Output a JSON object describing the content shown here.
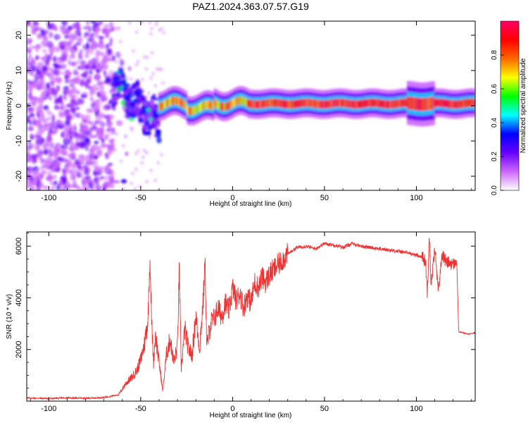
{
  "figure": {
    "title": "PAZ1.2024.363.07.57.G19"
  },
  "chart_data": [
    {
      "type": "heatmap",
      "xlabel": "Height of straight line (km)",
      "ylabel": "Frequency (Hz)",
      "xlim": [
        -112,
        132
      ],
      "ylim": [
        -24,
        24
      ],
      "xticks": [
        -100,
        -50,
        0,
        50,
        100
      ],
      "yticks": [
        -20,
        -10,
        0,
        10,
        20
      ],
      "colorbar": {
        "label": "Normalized spectral amplitude",
        "range": [
          0,
          1
        ],
        "ticks": [
          "0.0",
          "0.2",
          "0.4",
          "0.6",
          "0.8"
        ],
        "colormap": [
          "#ffffff",
          "#cc66ff",
          "#6600ff",
          "#0000ff",
          "#00ffff",
          "#00ff00",
          "#ffff00",
          "#ff6600",
          "#ff0000",
          "#ff0066"
        ]
      },
      "regions": [
        {
          "x_range": [
            -112,
            -65
          ],
          "freq_range": [
            -24,
            24
          ],
          "amplitude": "0.1–0.3",
          "note": "scattered noise"
        },
        {
          "x_range": [
            -65,
            -40
          ],
          "freq_center_start": 6,
          "freq_center_end": -5,
          "amplitude": "0.2–0.4"
        },
        {
          "x_range": [
            -40,
            132
          ],
          "freq_center": 0.5,
          "amplitude": "0.5–1.0"
        }
      ]
    },
    {
      "type": "line",
      "xlabel": "Height of straight line (km)",
      "ylabel": "SNR (10 * v/v)",
      "xlim": [
        -112,
        132
      ],
      "ylim": [
        0,
        6550
      ],
      "xticks": [
        -100,
        -50,
        0,
        50,
        100
      ],
      "yticks": [
        2000,
        4000,
        6000
      ],
      "grid": false,
      "color": "#ee3333",
      "series": [
        {
          "x": [
            -112,
            -100,
            -90,
            -80,
            -70,
            -62,
            -58,
            -55,
            -52,
            -50,
            -48,
            -46,
            -45,
            -44,
            -43,
            -42,
            -40,
            -38,
            -36,
            -34,
            -32,
            -30,
            -29,
            -28,
            -26,
            -24,
            -22,
            -20,
            -18,
            -16,
            -15,
            -14,
            -12,
            -10,
            -8,
            -6,
            -4,
            -2,
            0,
            2,
            4,
            6,
            8,
            10,
            12,
            14,
            16,
            18,
            20,
            25,
            30,
            35,
            40,
            45,
            50,
            55,
            60,
            65,
            70,
            75,
            80,
            85,
            90,
            95,
            100,
            103,
            105,
            106,
            107,
            108,
            110,
            112,
            114,
            116,
            118,
            120,
            121,
            122,
            123,
            125,
            128,
            132
          ],
          "y": [
            120,
            100,
            130,
            110,
            140,
            250,
            700,
            900,
            1200,
            1600,
            2200,
            3200,
            5600,
            3000,
            1500,
            2600,
            1500,
            400,
            1800,
            2400,
            1500,
            2100,
            5200,
            1200,
            2800,
            2000,
            1800,
            3300,
            2000,
            3900,
            5400,
            2100,
            3000,
            3200,
            3600,
            3300,
            3800,
            3500,
            4400,
            3900,
            4200,
            3600,
            4100,
            3800,
            4600,
            4400,
            4800,
            4600,
            4900,
            5300,
            5700,
            5950,
            6000,
            5900,
            6100,
            6050,
            5950,
            6100,
            6000,
            5950,
            5900,
            5850,
            5800,
            5750,
            5650,
            5600,
            5400,
            4100,
            6500,
            4500,
            5900,
            4300,
            5700,
            5400,
            5350,
            5300,
            5350,
            5350,
            2700,
            2650,
            2600,
            2650
          ]
        }
      ]
    }
  ]
}
